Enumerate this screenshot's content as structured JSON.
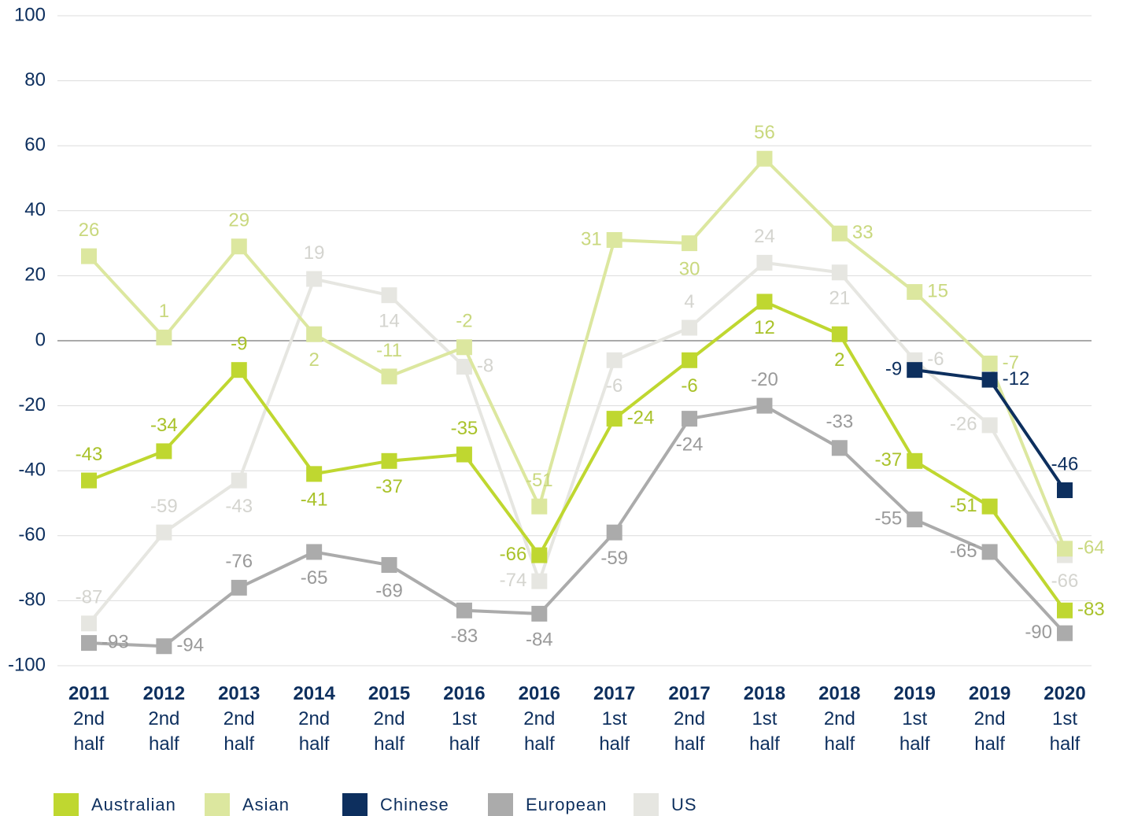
{
  "chart_data": {
    "type": "line",
    "categories": [
      "2011\n2nd\nhalf",
      "2012\n2nd\nhalf",
      "2013\n2nd\nhalf",
      "2014\n2nd\nhalf",
      "2015\n2nd\nhalf",
      "2016\n1st\nhalf",
      "2016\n2nd\nhalf",
      "2017\n1st\nhalf",
      "2017\n2nd\nhalf",
      "2018\n1st\nhalf",
      "2018\n2nd\nhalf",
      "2019\n1st\nhalf",
      "2019\n2nd\nhalf",
      "2020\n1st\nhalf"
    ],
    "series": [
      {
        "name": "Australian",
        "color": "#bfd730",
        "values": [
          -43,
          -34,
          -9,
          -41,
          -37,
          -35,
          -66,
          -24,
          -6,
          12,
          2,
          -37,
          -51,
          -83
        ]
      },
      {
        "name": "Asian",
        "color": "#dce79f",
        "values": [
          26,
          1,
          29,
          2,
          -11,
          -2,
          -51,
          31,
          30,
          56,
          33,
          15,
          -7,
          -64
        ]
      },
      {
        "name": "Chinese",
        "color": "#0d2f5e",
        "values": [
          null,
          null,
          null,
          null,
          null,
          null,
          null,
          null,
          null,
          null,
          null,
          -9,
          -12,
          -46
        ]
      },
      {
        "name": "European",
        "color": "#ababab",
        "values": [
          -93,
          -94,
          -76,
          -65,
          -69,
          -83,
          -84,
          -59,
          -24,
          -20,
          -33,
          -55,
          -65,
          -90
        ]
      },
      {
        "name": "US",
        "color": "#e6e6e1",
        "values": [
          -87,
          -59,
          -43,
          19,
          14,
          -8,
          -74,
          -6,
          4,
          24,
          21,
          -6,
          -26,
          -66
        ]
      }
    ],
    "ylim": [
      -100,
      100
    ],
    "yticks": [
      -100,
      -80,
      -60,
      -40,
      -20,
      0,
      20,
      40,
      60,
      80,
      100
    ],
    "grid": true,
    "legend": "bottom"
  }
}
